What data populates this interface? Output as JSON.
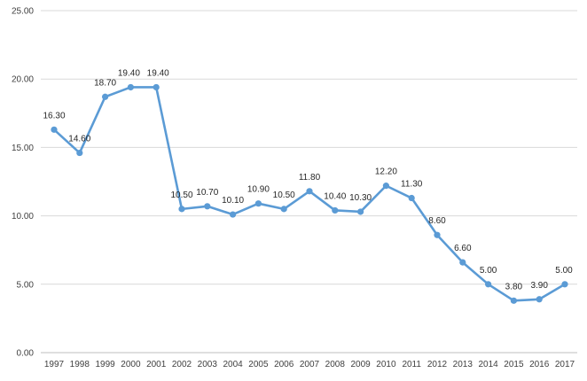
{
  "chart_data": {
    "type": "line",
    "title": "",
    "xlabel": "",
    "ylabel": "",
    "x": [
      "1997",
      "1998",
      "1999",
      "2000",
      "2001",
      "2002",
      "2003",
      "2004",
      "2005",
      "2006",
      "2007",
      "2008",
      "2009",
      "2010",
      "2011",
      "2012",
      "2013",
      "2014",
      "2015",
      "2016",
      "2017"
    ],
    "series": [
      {
        "values": [
          16.3,
          14.6,
          18.7,
          19.4,
          19.4,
          10.5,
          10.7,
          10.1,
          10.9,
          10.5,
          11.8,
          10.4,
          10.3,
          12.2,
          11.3,
          8.6,
          6.6,
          5.0,
          3.8,
          3.9,
          5.0
        ],
        "labels": [
          "16.30",
          "14.60",
          "18.70",
          "19.40",
          "19.40",
          "10.50",
          "10.70",
          "10.10",
          "10.90",
          "10.50",
          "11.80",
          "10.40",
          "10.30",
          "12.20",
          "11.30",
          "8.60",
          "6.60",
          "5.00",
          "3.80",
          "3.90",
          "5.00"
        ],
        "color": "#5b9bd5"
      }
    ],
    "y_ticks": [
      "0.00",
      "5.00",
      "10.00",
      "15.00",
      "20.00",
      "25.00"
    ],
    "ylim": [
      0,
      25
    ],
    "grid": true,
    "legend": "none",
    "gridline_color": "#d9d9d9"
  }
}
